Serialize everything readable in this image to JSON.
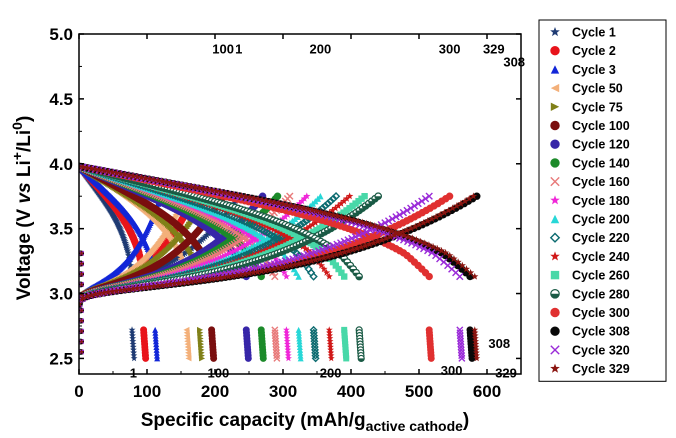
{
  "chart_data": {
    "type": "scatter",
    "title": "",
    "xlabel_main": "Specific capacity (mAh/g",
    "xlabel_sub": "active cathode",
    "xlabel_end": ")",
    "ylabel_main": "Voltage (V ",
    "ylabel_vs": "vs",
    "ylabel_li": " Li",
    "ylabel_sup1": "+",
    "ylabel_slash": "/Li",
    "ylabel_sup2": "0",
    "ylabel_end": ")",
    "xlim": [
      0,
      650
    ],
    "ylim": [
      2.38,
      5.0
    ],
    "xticks": [
      "0",
      "100",
      "200",
      "300",
      "400",
      "500",
      "600"
    ],
    "yticks": [
      "2.5",
      "3.0",
      "3.5",
      "4.0",
      "4.5",
      "5.0"
    ],
    "legend_position": "right",
    "series": [
      {
        "name": "Cycle 1",
        "marker": "star",
        "color": "#1f3b73",
        "charge_capacity": 235,
        "discharge_capacity": 78
      },
      {
        "name": "Cycle 2",
        "marker": "circle",
        "color": "#e8141b",
        "charge_capacity": 170,
        "discharge_capacity": 95
      },
      {
        "name": "Cycle 3",
        "marker": "triangle",
        "color": "#1226d8",
        "charge_capacity": 120,
        "discharge_capacity": 112
      },
      {
        "name": "Cycle 50",
        "marker": "tri-left",
        "color": "#f3b07a",
        "charge_capacity": 155,
        "discharge_capacity": 158
      },
      {
        "name": "Cycle 75",
        "marker": "tri-right",
        "color": "#808018",
        "charge_capacity": 188,
        "discharge_capacity": 178
      },
      {
        "name": "Cycle 100",
        "marker": "circle",
        "color": "#7a0f0f",
        "charge_capacity": 212,
        "discharge_capacity": 195
      },
      {
        "name": "Cycle 120",
        "marker": "circle",
        "color": "#3726a8",
        "charge_capacity": 270,
        "discharge_capacity": 246
      },
      {
        "name": "Cycle 140",
        "marker": "circle",
        "color": "#1c8a2a",
        "charge_capacity": 292,
        "discharge_capacity": 268
      },
      {
        "name": "Cycle 160",
        "marker": "x",
        "color": "#e87a7a",
        "charge_capacity": 310,
        "discharge_capacity": 288
      },
      {
        "name": "Cycle 180",
        "marker": "star",
        "color": "#f026d8",
        "charge_capacity": 335,
        "discharge_capacity": 305
      },
      {
        "name": "Cycle 200",
        "marker": "triangle",
        "color": "#27d7d7",
        "charge_capacity": 355,
        "discharge_capacity": 323
      },
      {
        "name": "Cycle 220",
        "marker": "diamond",
        "color": "#0c6b70",
        "charge_capacity": 378,
        "discharge_capacity": 345
      },
      {
        "name": "Cycle 240",
        "marker": "star",
        "color": "#d01818",
        "charge_capacity": 398,
        "discharge_capacity": 368
      },
      {
        "name": "Cycle 260",
        "marker": "square",
        "color": "#48d8a8",
        "charge_capacity": 420,
        "discharge_capacity": 390
      },
      {
        "name": "Cycle 280",
        "marker": "half",
        "color": "#1a5a45",
        "charge_capacity": 440,
        "discharge_capacity": 412
      },
      {
        "name": "Cycle 300",
        "marker": "circle",
        "color": "#e03030",
        "charge_capacity": 545,
        "discharge_capacity": 515
      },
      {
        "name": "Cycle 308",
        "marker": "circle",
        "color": "#080808",
        "charge_capacity": 585,
        "discharge_capacity": 575
      },
      {
        "name": "Cycle 320",
        "marker": "x",
        "color": "#9a2bd8",
        "charge_capacity": 515,
        "discharge_capacity": 560
      },
      {
        "name": "Cycle 329",
        "marker": "star",
        "color": "#8a1510",
        "charge_capacity": 580,
        "discharge_capacity": 582
      }
    ],
    "annotations": {
      "charge": [
        {
          "text": "100",
          "x": 212,
          "v": 4.88
        },
        {
          "text": "1",
          "x": 235,
          "v": 4.88
        },
        {
          "text": "200",
          "x": 355,
          "v": 4.88
        },
        {
          "text": "300",
          "x": 545,
          "v": 4.88
        },
        {
          "text": "329",
          "x": 610,
          "v": 4.88
        },
        {
          "text": "308",
          "x": 640,
          "v": 4.78
        }
      ],
      "discharge": [
        {
          "text": "1",
          "x": 80,
          "v": 2.39
        },
        {
          "text": "100",
          "x": 205,
          "v": 2.39
        },
        {
          "text": "200",
          "x": 370,
          "v": 2.39
        },
        {
          "text": "300",
          "x": 548,
          "v": 2.41
        },
        {
          "text": "308",
          "x": 618,
          "v": 2.62
        },
        {
          "text": "329",
          "x": 628,
          "v": 2.39
        }
      ]
    }
  }
}
